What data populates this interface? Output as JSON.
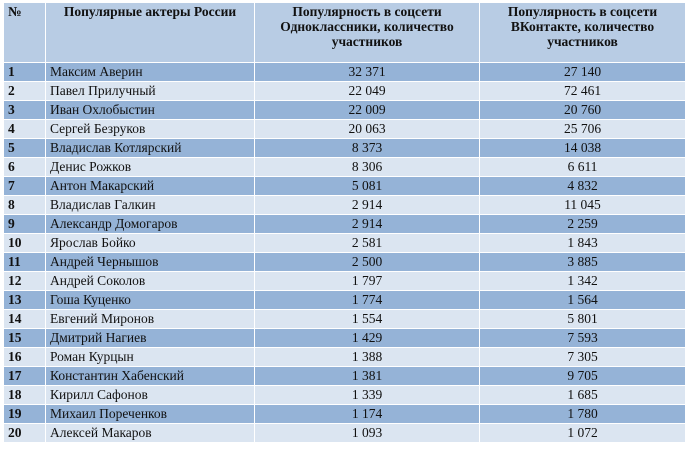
{
  "headers": {
    "num": "№",
    "actor": "Популярные актеры России",
    "ok": "Популярность в соцсети Одноклассники, количество участников",
    "vk": "Популярность в соцсети ВКонтакте, количество участников"
  },
  "rows": [
    {
      "n": "1",
      "name": "Максим Аверин",
      "ok": "32 371",
      "vk": "27 140"
    },
    {
      "n": "2",
      "name": "Павел Прилучный",
      "ok": "22 049",
      "vk": "72 461"
    },
    {
      "n": "3",
      "name": "Иван Охлобыстин",
      "ok": "22 009",
      "vk": "20 760"
    },
    {
      "n": "4",
      "name": "Сергей Безруков",
      "ok": "20 063",
      "vk": "25 706"
    },
    {
      "n": "5",
      "name": "Владислав Котлярский",
      "ok": "8 373",
      "vk": "14 038"
    },
    {
      "n": "6",
      "name": "Денис Рожков",
      "ok": "8 306",
      "vk": "6 611"
    },
    {
      "n": "7",
      "name": "Антон Макарский",
      "ok": "5 081",
      "vk": "4 832"
    },
    {
      "n": "8",
      "name": "Владислав Галкин",
      "ok": "2 914",
      "vk": "11 045"
    },
    {
      "n": "9",
      "name": "Александр Домогаров",
      "ok": "2 914",
      "vk": "2 259"
    },
    {
      "n": "10",
      "name": "Ярослав Бойко",
      "ok": "2 581",
      "vk": "1 843"
    },
    {
      "n": "11",
      "name": "Андрей Чернышов",
      "ok": "2 500",
      "vk": "3 885"
    },
    {
      "n": "12",
      "name": "Андрей Соколов",
      "ok": "1 797",
      "vk": "1 342"
    },
    {
      "n": "13",
      "name": "Гоша Куценко",
      "ok": "1 774",
      "vk": "1 564"
    },
    {
      "n": "14",
      "name": "Евгений Миронов",
      "ok": "1 554",
      "vk": "5 801"
    },
    {
      "n": "15",
      "name": "Дмитрий Нагиев",
      "ok": "1 429",
      "vk": "7 593"
    },
    {
      "n": "16",
      "name": "Роман Курцын",
      "ok": "1 388",
      "vk": "7 305"
    },
    {
      "n": "17",
      "name": "Константин Хабенский",
      "ok": "1 381",
      "vk": "9 705"
    },
    {
      "n": "18",
      "name": "Кирилл Сафонов",
      "ok": "1 339",
      "vk": "1 685"
    },
    {
      "n": "19",
      "name": "Михаил Пореченков",
      "ok": "1 174",
      "vk": "1 780"
    },
    {
      "n": "20",
      "name": "Алексей Макаров",
      "ok": "1 093",
      "vk": "1 072"
    }
  ]
}
